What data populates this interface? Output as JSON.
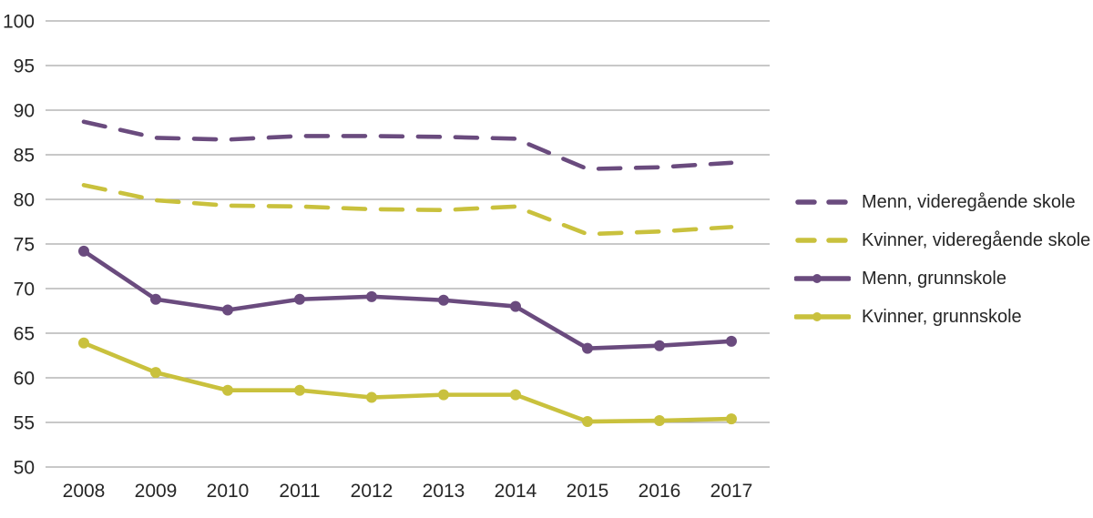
{
  "chart_data": {
    "type": "line",
    "categories": [
      "2008",
      "2009",
      "2010",
      "2011",
      "2012",
      "2013",
      "2014",
      "2015",
      "2016",
      "2017"
    ],
    "series": [
      {
        "name": "Menn, videregående skole",
        "color": "#6a4b7e",
        "style": "dashed",
        "values": [
          88.7,
          86.9,
          86.7,
          87.1,
          87.1,
          87.0,
          86.8,
          83.4,
          83.6,
          84.1
        ]
      },
      {
        "name": "Kvinner, videregående skole",
        "color": "#c9c13d",
        "style": "dashed",
        "values": [
          81.6,
          79.9,
          79.3,
          79.2,
          78.9,
          78.8,
          79.2,
          76.1,
          76.4,
          76.9
        ]
      },
      {
        "name": "Menn, grunnskole",
        "color": "#6a4b7e",
        "style": "solid-marker",
        "values": [
          74.2,
          68.8,
          67.6,
          68.8,
          69.1,
          68.7,
          68.0,
          63.3,
          63.6,
          64.1
        ]
      },
      {
        "name": "Kvinner, grunnskole",
        "color": "#c9c13d",
        "style": "solid-marker",
        "values": [
          63.9,
          60.6,
          58.6,
          58.6,
          57.8,
          58.1,
          58.1,
          55.1,
          55.2,
          55.4
        ]
      }
    ],
    "title": "",
    "xlabel": "",
    "ylabel": "",
    "ylim": [
      50,
      100
    ],
    "yticks": [
      50,
      55,
      60,
      65,
      70,
      75,
      80,
      85,
      90,
      95,
      100
    ],
    "grid": "horizontal",
    "gridline_color": "#a6a6a6",
    "text_color": "#262626",
    "legend_position": "right"
  }
}
